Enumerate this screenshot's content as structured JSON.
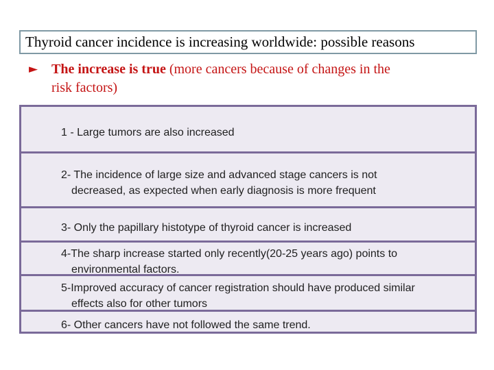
{
  "slide": {
    "title": "Thyroid cancer incidence is increasing worldwide: possible reasons",
    "bullet": {
      "marker": "►",
      "lead_bold": "The increase is true",
      "line1_rest": " (more cancers because of changes in the",
      "line2": "risk factors)"
    },
    "table": {
      "rows": [
        {
          "lines": [
            "1 - Large tumors are also increased"
          ]
        },
        {
          "lines": [
            "2- The incidence of large size and advanced stage cancers is not",
            "decreased, as expected when early diagnosis is more frequent"
          ]
        },
        {
          "lines": [
            "3- Only the papillary histotype of thyroid cancer is increased"
          ]
        },
        {
          "lines": [
            "4-The sharp increase started only recently(20-25 years ago) points to",
            "environmental factors."
          ]
        },
        {
          "lines": [
            "5-Improved accuracy of cancer registration should have produced similar",
            "effects also for other tumors"
          ]
        },
        {
          "lines": [
            "6- Other cancers have not followed the same trend."
          ]
        }
      ]
    },
    "colors": {
      "accent_red": "#c41414",
      "purple_border": "#7a6a99",
      "row_background": "#edeaf2",
      "title_border": "#7f99a4"
    }
  }
}
